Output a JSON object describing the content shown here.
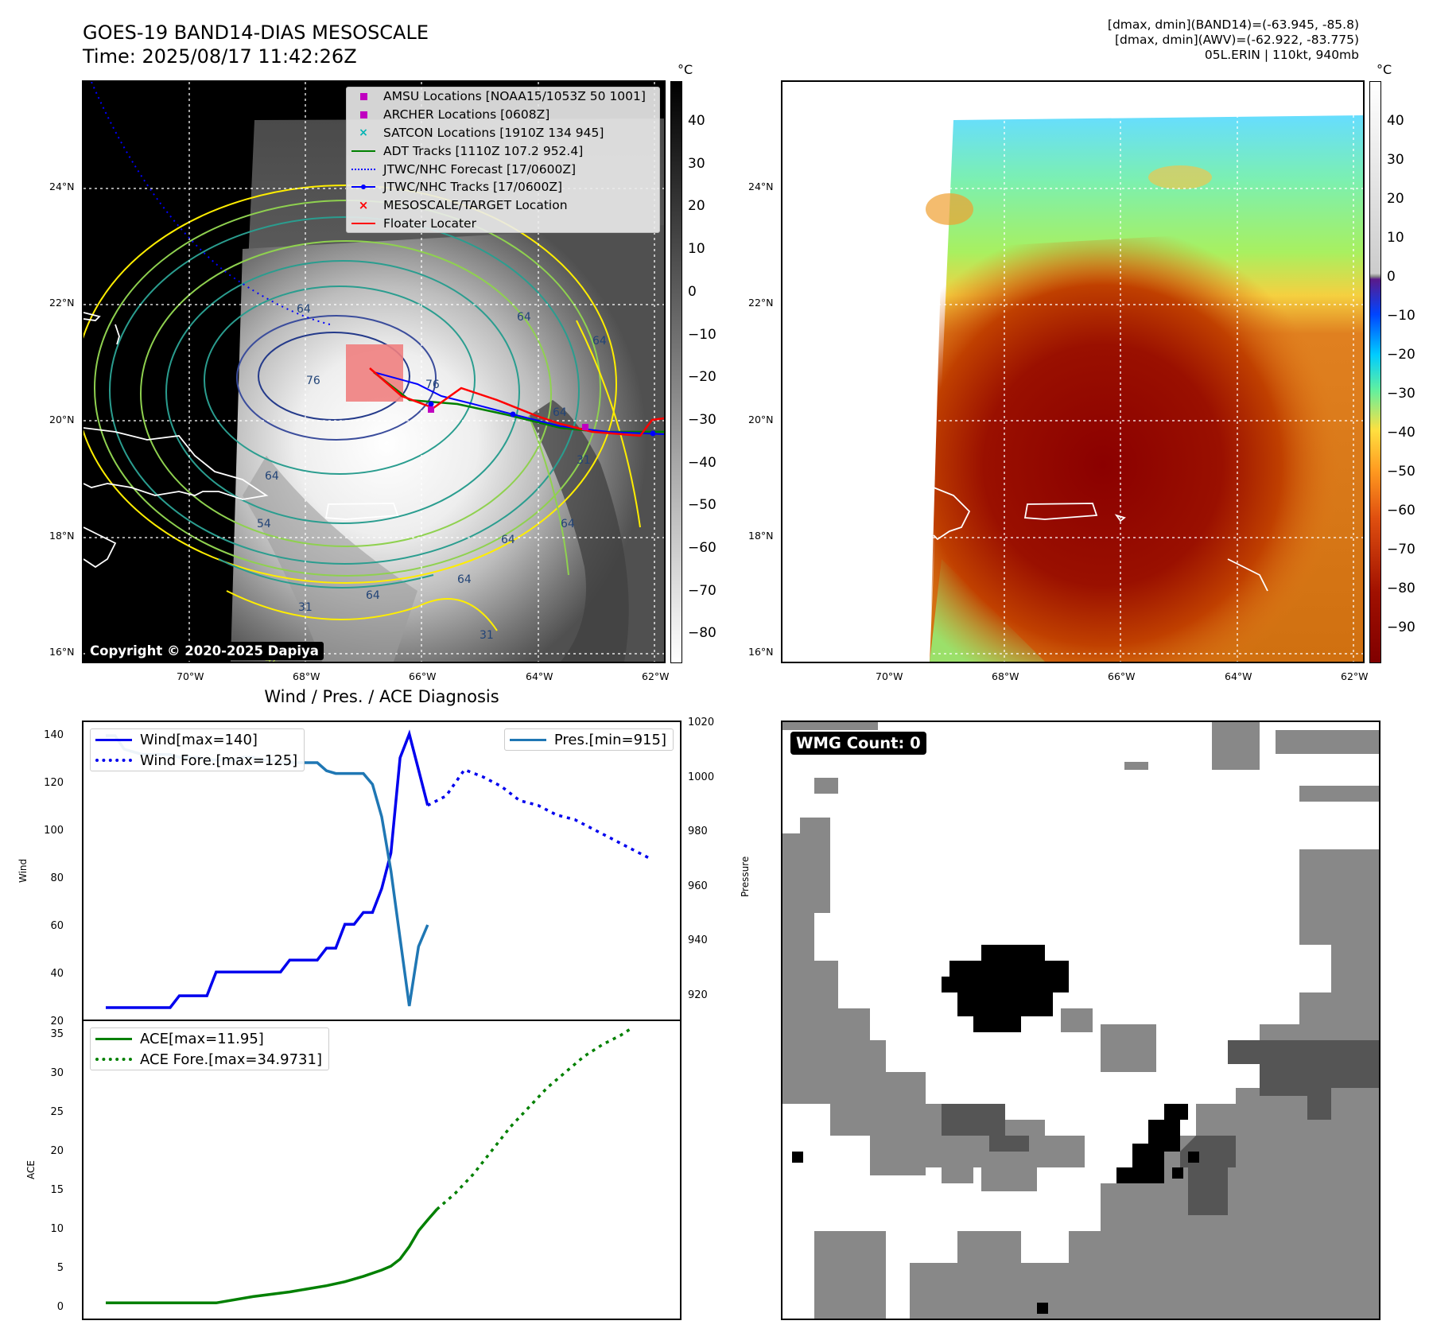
{
  "header": {
    "title_line1": "GOES-19 BAND14-DIAS MESOSCALE",
    "title_line2": "Time: 2025/08/17 11:42:26Z",
    "info_line1": "[dmax, dmin](BAND14)=(-63.945, -85.8)",
    "info_line2": "[dmax, dmin](AWV)=(-62.922, -83.775)",
    "info_line3": "05L.ERIN | 110kt, 940mb"
  },
  "map": {
    "lat_labels": [
      "24°N",
      "22°N",
      "20°N",
      "18°N",
      "16°N"
    ],
    "lon_labels": [
      "70°W",
      "68°W",
      "66°W",
      "64°W",
      "62°W"
    ],
    "copyright": "Copyright © 2020-2025 Dapiya",
    "contour_labels": [
      "64",
      "64",
      "76",
      "76",
      "64",
      "54",
      "64",
      "31",
      "64",
      "64",
      "31",
      "64",
      "64",
      "31",
      "64",
      "42",
      "31"
    ]
  },
  "legend": {
    "items": [
      {
        "label": "AMSU Locations [NOAA15/1053Z 50 1001]",
        "marker": "square",
        "color": "#c000c0"
      },
      {
        "label": "ARCHER Locations [0608Z]",
        "marker": "square",
        "color": "#c000c0"
      },
      {
        "label": "SATCON Locations [1910Z 134 945]",
        "marker": "x",
        "color": "#00b4b4"
      },
      {
        "label": "ADT Tracks [1110Z 107.2 952.4]",
        "marker": "line",
        "color": "#008000"
      },
      {
        "label": "JTWC/NHC Forecast [17/0600Z]",
        "marker": "dotted",
        "color": "#0000ff"
      },
      {
        "label": "JTWC/NHC Tracks [17/0600Z]",
        "marker": "line-dot",
        "color": "#0000ff"
      },
      {
        "label": "MESOSCALE/TARGET Location",
        "marker": "x",
        "color": "#ff0000"
      },
      {
        "label": "Floater Locater",
        "marker": "line",
        "color": "#ff0000"
      }
    ]
  },
  "colorbar1": {
    "unit": "°C",
    "ticks": [
      "40",
      "30",
      "20",
      "10",
      "0",
      "−10",
      "−20",
      "−30",
      "−40",
      "−50",
      "−60",
      "−70",
      "−80"
    ]
  },
  "colorbar2": {
    "unit": "°C",
    "ticks": [
      "40",
      "30",
      "20",
      "10",
      "0",
      "−10",
      "−20",
      "−30",
      "−40",
      "−50",
      "−60",
      "−70",
      "−80",
      "−90"
    ]
  },
  "diagnosis": {
    "title": "Wind / Pres. / ACE Diagnosis",
    "wind_ylabel": "Wind",
    "pres_ylabel": "Pressure",
    "ace_ylabel": "ACE",
    "wind_ticks": [
      "140",
      "120",
      "100",
      "80",
      "60",
      "40",
      "20"
    ],
    "pres_ticks": [
      "1020",
      "1000",
      "980",
      "960",
      "940",
      "920"
    ],
    "ace_ticks": [
      "35",
      "30",
      "25",
      "20",
      "15",
      "10",
      "5",
      "0"
    ],
    "legend_wind": "Wind[max=140]",
    "legend_wind_fore": "Wind Fore.[max=125]",
    "legend_pres": "Pres.[min=915]",
    "legend_ace": "ACE[max=11.95]",
    "legend_ace_fore": "ACE Fore.[max=34.9731]"
  },
  "chart_data": [
    {
      "type": "line",
      "title": "Wind / Pres. / ACE Diagnosis",
      "ylabel": "Wind",
      "ylim": [
        20,
        145
      ],
      "y2label": "Pressure",
      "y2lim": [
        910,
        1020
      ],
      "x": [
        0,
        1,
        2,
        3,
        4,
        5,
        6,
        7,
        8,
        9,
        10,
        11,
        12,
        13,
        14,
        15,
        16,
        17,
        18,
        19,
        20,
        21,
        22,
        23,
        24,
        25,
        26,
        27,
        28,
        29,
        30,
        31,
        32,
        33,
        34,
        35,
        36,
        37,
        38,
        39,
        40,
        41,
        42,
        43,
        44,
        45,
        46,
        47,
        48,
        49,
        50,
        51,
        52,
        53,
        54,
        55,
        56,
        57
      ],
      "series": [
        {
          "name": "Wind[max=140]",
          "style": "solid",
          "color": "#0000ee",
          "points": [
            [
              0,
              25
            ],
            [
              1,
              25
            ],
            [
              2,
              25
            ],
            [
              3,
              25
            ],
            [
              4,
              25
            ],
            [
              5,
              25
            ],
            [
              6,
              25
            ],
            [
              7,
              25
            ],
            [
              8,
              30
            ],
            [
              9,
              30
            ],
            [
              10,
              30
            ],
            [
              11,
              30
            ],
            [
              12,
              40
            ],
            [
              13,
              40
            ],
            [
              14,
              40
            ],
            [
              15,
              40
            ],
            [
              16,
              40
            ],
            [
              17,
              40
            ],
            [
              18,
              40
            ],
            [
              19,
              40
            ],
            [
              20,
              45
            ],
            [
              21,
              45
            ],
            [
              22,
              45
            ],
            [
              23,
              45
            ],
            [
              24,
              50
            ],
            [
              25,
              50
            ],
            [
              26,
              60
            ],
            [
              27,
              60
            ],
            [
              28,
              65
            ],
            [
              29,
              65
            ],
            [
              30,
              75
            ],
            [
              31,
              90
            ],
            [
              32,
              130
            ],
            [
              33,
              140
            ],
            [
              34,
              125
            ],
            [
              35,
              110
            ]
          ]
        },
        {
          "name": "Wind Fore.[max=125]",
          "style": "dotted",
          "color": "#0000ee",
          "points": [
            [
              35,
              110
            ],
            [
              37,
              114
            ],
            [
              39,
              125
            ],
            [
              41,
              122
            ],
            [
              43,
              118
            ],
            [
              45,
              112
            ],
            [
              47,
              110
            ],
            [
              49,
              106
            ],
            [
              51,
              104
            ],
            [
              53,
              100
            ],
            [
              55,
              96
            ],
            [
              57,
              92
            ],
            [
              59,
              88
            ]
          ]
        },
        {
          "name": "Pres.[min=915]",
          "style": "solid",
          "color": "#1f77b4",
          "axis": "right",
          "points": [
            [
              0,
              1015
            ],
            [
              1,
              1015
            ],
            [
              2,
              1010
            ],
            [
              3,
              1009
            ],
            [
              4,
              1008
            ],
            [
              5,
              1008
            ],
            [
              6,
              1008
            ],
            [
              7,
              1008
            ],
            [
              8,
              1007
            ],
            [
              9,
              1007
            ],
            [
              10,
              1007
            ],
            [
              11,
              1006
            ],
            [
              12,
              1006
            ],
            [
              13,
              1006
            ],
            [
              14,
              1006
            ],
            [
              15,
              1007
            ],
            [
              16,
              1007
            ],
            [
              17,
              1006
            ],
            [
              18,
              1006
            ],
            [
              19,
              1005
            ],
            [
              20,
              1005
            ],
            [
              21,
              1005
            ],
            [
              22,
              1005
            ],
            [
              23,
              1005
            ],
            [
              24,
              1002
            ],
            [
              25,
              1001
            ],
            [
              26,
              1001
            ],
            [
              27,
              1001
            ],
            [
              28,
              1001
            ],
            [
              29,
              997
            ],
            [
              30,
              985
            ],
            [
              31,
              965
            ],
            [
              32,
              940
            ],
            [
              33,
              915
            ],
            [
              34,
              937
            ],
            [
              35,
              945
            ]
          ]
        }
      ]
    },
    {
      "type": "line",
      "ylabel": "ACE",
      "ylim": [
        -2,
        36
      ],
      "series": [
        {
          "name": "ACE[max=11.95]",
          "style": "solid",
          "color": "#008000",
          "points": [
            [
              0,
              0
            ],
            [
              12,
              0
            ],
            [
              16,
              0.8
            ],
            [
              20,
              1.4
            ],
            [
              24,
              2.2
            ],
            [
              26,
              2.7
            ],
            [
              28,
              3.4
            ],
            [
              30,
              4.2
            ],
            [
              31,
              4.7
            ],
            [
              32,
              5.6
            ],
            [
              33,
              7.2
            ],
            [
              34,
              9.2
            ],
            [
              35,
              10.6
            ],
            [
              36,
              11.95
            ]
          ]
        },
        {
          "name": "ACE Fore.[max=34.9731]",
          "style": "dotted",
          "color": "#008000",
          "points": [
            [
              36,
              11.95
            ],
            [
              38,
              14
            ],
            [
              40,
              16.5
            ],
            [
              42,
              19.5
            ],
            [
              44,
              22.5
            ],
            [
              46,
              25
            ],
            [
              48,
              27.5
            ],
            [
              50,
              29.5
            ],
            [
              52,
              31.5
            ],
            [
              54,
              33
            ],
            [
              56,
              34.2
            ],
            [
              57,
              34.97
            ]
          ]
        }
      ]
    }
  ],
  "wmg": {
    "label": "WMG Count: 0"
  }
}
